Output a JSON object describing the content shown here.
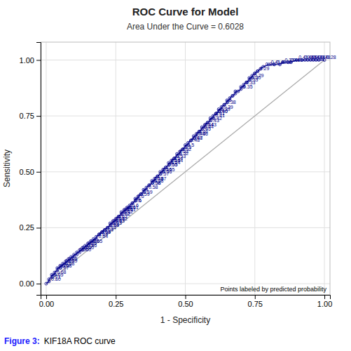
{
  "chart_data": {
    "type": "line",
    "marker": "circle",
    "title": "ROC Curve for Model",
    "subtitle": "Area Under the Curve = 0.6028",
    "x_label": "1 - Specificity",
    "y_label": "Sensitivity",
    "annotation": "Points labeled by predicted probability",
    "caption_label": "Figure 3:",
    "caption": "KIF18A ROC curve",
    "color": "#00008B",
    "x": [
      0.0,
      0.01,
      0.01,
      0.02,
      0.02,
      0.03,
      0.03,
      0.04,
      0.04,
      0.05,
      0.05,
      0.06,
      0.06,
      0.07,
      0.07,
      0.08,
      0.08,
      0.09,
      0.09,
      0.1,
      0.1,
      0.11,
      0.11,
      0.12,
      0.12,
      0.13,
      0.13,
      0.14,
      0.14,
      0.15,
      0.15,
      0.16,
      0.16,
      0.17,
      0.17,
      0.18,
      0.18,
      0.19,
      0.19,
      0.2,
      0.2,
      0.21,
      0.21,
      0.22,
      0.22,
      0.23,
      0.23,
      0.24,
      0.24,
      0.25,
      0.25,
      0.26,
      0.26,
      0.27,
      0.27,
      0.28,
      0.28,
      0.29,
      0.29,
      0.3,
      0.3,
      0.31,
      0.31,
      0.32,
      0.32,
      0.33,
      0.33,
      0.34,
      0.34,
      0.35,
      0.35,
      0.36,
      0.36,
      0.37,
      0.37,
      0.38,
      0.38,
      0.39,
      0.39,
      0.4,
      0.4,
      0.41,
      0.41,
      0.42,
      0.42,
      0.43,
      0.43,
      0.44,
      0.44,
      0.45,
      0.45,
      0.46,
      0.46,
      0.47,
      0.47,
      0.48,
      0.48,
      0.49,
      0.49,
      0.5,
      0.5,
      0.51,
      0.51,
      0.52,
      0.52,
      0.53,
      0.53,
      0.54,
      0.54,
      0.55,
      0.55,
      0.56,
      0.56,
      0.57,
      0.57,
      0.58,
      0.58,
      0.59,
      0.59,
      0.6,
      0.6,
      0.61,
      0.61,
      0.62,
      0.62,
      0.63,
      0.63,
      0.64,
      0.64,
      0.65,
      0.65,
      0.66,
      0.66,
      0.67,
      0.67,
      0.68,
      0.68,
      0.69,
      0.7,
      0.7,
      0.71,
      0.71,
      0.72,
      0.72,
      0.73,
      0.73,
      0.74,
      0.74,
      0.75,
      0.75,
      0.76,
      0.76,
      0.77,
      0.78,
      0.8,
      0.82,
      0.84,
      0.85,
      0.87,
      0.88,
      0.9,
      0.92,
      0.93,
      0.94,
      0.95,
      0.96,
      0.97,
      0.98,
      1.0
    ],
    "values": [
      0.0,
      0.01,
      0.02,
      0.03,
      0.04,
      0.04,
      0.05,
      0.06,
      0.07,
      0.07,
      0.08,
      0.08,
      0.09,
      0.09,
      0.1,
      0.1,
      0.11,
      0.11,
      0.12,
      0.12,
      0.13,
      0.13,
      0.14,
      0.14,
      0.15,
      0.15,
      0.16,
      0.16,
      0.17,
      0.17,
      0.18,
      0.18,
      0.19,
      0.19,
      0.2,
      0.2,
      0.21,
      0.22,
      0.22,
      0.23,
      0.23,
      0.24,
      0.24,
      0.25,
      0.25,
      0.26,
      0.27,
      0.27,
      0.28,
      0.28,
      0.29,
      0.3,
      0.3,
      0.31,
      0.32,
      0.32,
      0.33,
      0.33,
      0.34,
      0.34,
      0.35,
      0.36,
      0.36,
      0.37,
      0.38,
      0.38,
      0.39,
      0.4,
      0.4,
      0.41,
      0.42,
      0.42,
      0.43,
      0.44,
      0.44,
      0.45,
      0.46,
      0.46,
      0.47,
      0.48,
      0.48,
      0.49,
      0.5,
      0.5,
      0.51,
      0.52,
      0.52,
      0.53,
      0.54,
      0.54,
      0.55,
      0.56,
      0.56,
      0.57,
      0.58,
      0.58,
      0.59,
      0.6,
      0.6,
      0.61,
      0.62,
      0.62,
      0.63,
      0.64,
      0.64,
      0.65,
      0.66,
      0.66,
      0.67,
      0.68,
      0.68,
      0.69,
      0.7,
      0.7,
      0.71,
      0.72,
      0.72,
      0.73,
      0.74,
      0.74,
      0.75,
      0.76,
      0.76,
      0.77,
      0.78,
      0.78,
      0.79,
      0.8,
      0.8,
      0.81,
      0.82,
      0.82,
      0.83,
      0.84,
      0.84,
      0.85,
      0.86,
      0.86,
      0.87,
      0.88,
      0.88,
      0.89,
      0.9,
      0.9,
      0.91,
      0.92,
      0.92,
      0.93,
      0.94,
      0.94,
      0.95,
      0.95,
      0.96,
      0.97,
      0.98,
      0.98,
      0.98,
      0.99,
      0.99,
      0.99,
      1.0,
      1.0,
      1.0,
      1.0,
      1.0,
      1.0,
      1.0,
      1.0,
      1.0
    ],
    "point_labels": [
      null,
      "0.80",
      "0.71",
      "0.69",
      null,
      "0.68",
      null,
      "0.67",
      "0.70",
      "0.68",
      null,
      "0.68",
      "0.67",
      "0.69",
      "0.68",
      null,
      null,
      null,
      null,
      null,
      null,
      null,
      "0.00",
      "0.00",
      "0.00",
      "0.00",
      null,
      "0.86",
      "0.66",
      null,
      "0.66",
      "0.65",
      null,
      null,
      null,
      "0.64",
      "0.64",
      "0.65",
      "0.64",
      null,
      "0.64",
      null,
      "0.84",
      "0.84",
      "0.63",
      "0.63",
      "0.63",
      "0.63",
      "0.63",
      "0.62",
      "0.62",
      "0.62",
      "0.62",
      "0.62",
      "0.61",
      "0.61",
      "0.61",
      "0.61",
      null,
      "0.6",
      null,
      "0.6",
      "0.6",
      null,
      "0.6",
      null,
      "0.59",
      "0.59",
      null,
      null,
      null,
      "0.58",
      null,
      "0.58",
      "0.58",
      "0.58",
      "0.58",
      "0.57",
      null,
      "0.57",
      null,
      "0.56",
      "0.56",
      "0.55",
      null,
      "0.55",
      "0.55",
      "0.54",
      "0.54",
      "0.54",
      "0.54",
      "0.53",
      null,
      "0.52",
      "0.52",
      null,
      "0.52",
      "0.5",
      null,
      "0.5",
      null,
      null,
      "0.48",
      "0.48",
      "0.47",
      null,
      "0.46",
      "0.46",
      "0.46",
      "0.45",
      null,
      "0.44",
      "0.44",
      "0.43",
      null,
      "0.43",
      null,
      "0.42",
      null,
      "0.41",
      "0.41",
      "0.40",
      "0.40",
      "0.39",
      null,
      "0.39",
      null,
      "0.38",
      null,
      null,
      null,
      null,
      null,
      null,
      null,
      null,
      null,
      null,
      "0.35",
      null,
      null,
      "0.33",
      "0.33",
      null,
      "0.30",
      null,
      "0.29",
      null,
      null,
      null,
      null,
      "0.29",
      null,
      "0.39",
      "0.41",
      "0.40",
      "0.39",
      "0.33",
      "0.41",
      "0.43",
      "0.41",
      "0.46",
      "0.45",
      "0.44",
      "0.43",
      "0.48",
      "0.47",
      "0.48",
      "0.28"
    ],
    "reference_line": {
      "x": [
        0,
        1
      ],
      "values": [
        0,
        1
      ],
      "color": "#aaaaaa"
    },
    "xlim": [
      -0.02,
      1.02
    ],
    "ylim": [
      -0.05,
      1.08
    ],
    "xticks": [
      {
        "value": 0,
        "label": "0.00"
      },
      {
        "value": 0.25,
        "label": "0.25"
      },
      {
        "value": 0.5,
        "label": "0.50"
      },
      {
        "value": 0.75,
        "label": "0.75"
      },
      {
        "value": 1,
        "label": "1.00"
      }
    ],
    "yticks": [
      {
        "value": 0,
        "label": "0.00"
      },
      {
        "value": 0.25,
        "label": "0.25"
      },
      {
        "value": 0.5,
        "label": "0.50"
      },
      {
        "value": 0.75,
        "label": "0.75"
      },
      {
        "value": 1,
        "label": "1.00"
      }
    ],
    "grid": true
  }
}
